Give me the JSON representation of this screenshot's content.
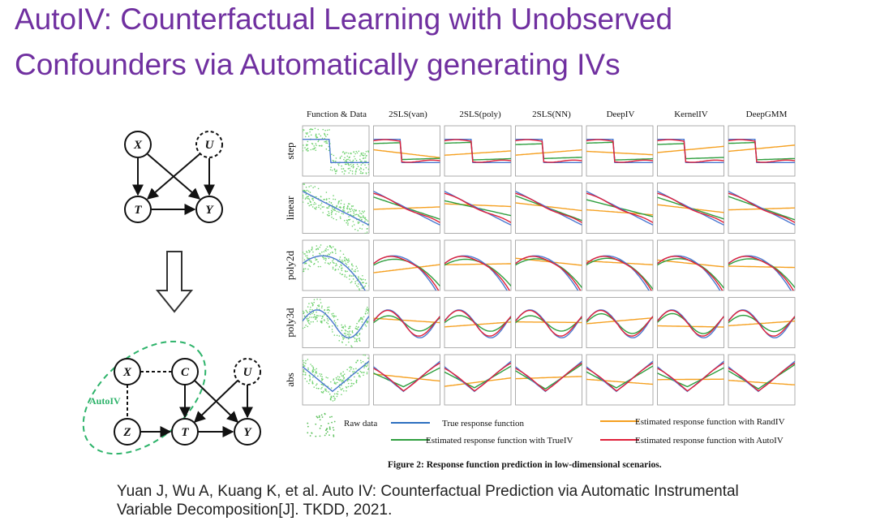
{
  "title": [
    "AutoIV: Counterfactual Learning with Unobserved",
    "Confounders via Automatically generating IVs"
  ],
  "top_graph": {
    "nodes": [
      "X",
      "U",
      "T",
      "Y"
    ]
  },
  "bottom_graph": {
    "nodes": [
      "X",
      "C",
      "U",
      "Z",
      "T",
      "Y"
    ],
    "group_label": "AutoIV"
  },
  "figure": {
    "columns": [
      "Function & Data",
      "2SLS(van)",
      "2SLS(poly)",
      "2SLS(NN)",
      "DeepIV",
      "KernelIV",
      "DeepGMM"
    ],
    "rows": [
      "step",
      "linear",
      "poly2d",
      "poly3d",
      "abs"
    ],
    "legend": [
      "Raw data",
      "True response function",
      "Estimated response function with RandIV",
      "Estimated response function with TrueIV",
      "Estimated response function with AutoIV"
    ],
    "caption": "Figure 2: Response function prediction in low-dimensional scenarios."
  },
  "citation": [
    "Yuan J, Wu A, Kuang K, et al. Auto IV: Counterfactual Prediction via Automatic Instrumental",
    "Variable Decomposition[J]. TKDD, 2021."
  ]
}
